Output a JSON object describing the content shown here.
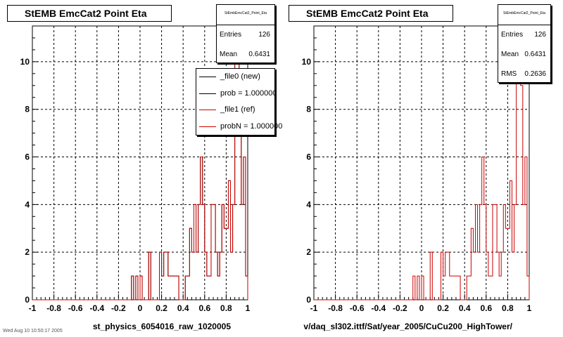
{
  "chart_data": [
    {
      "type": "histogram",
      "title": "StEMB EmcCat2 Point Eta",
      "xlabel": "st_physics_6054016_raw_1020005",
      "xlim": [
        -1,
        1
      ],
      "ylim": [
        0,
        11.5
      ],
      "xticks": [
        "-1",
        "-0.8",
        "-0.6",
        "-0.4",
        "-0.2",
        "0",
        "0.2",
        "0.4",
        "0.6",
        "0.8",
        "1"
      ],
      "yticks": [
        "0",
        "2",
        "4",
        "6",
        "8",
        "10"
      ],
      "grid": true,
      "bins": 100,
      "stats": {
        "header": "StEmbEmcCat2_Point_Eta",
        "rows": [
          {
            "label": "Entries",
            "value": "126"
          },
          {
            "label": "Mean",
            "value": "0.6431"
          }
        ]
      },
      "legend": {
        "placement": "top-right",
        "entries": [
          {
            "label": "_file0 (new)",
            "color": "#000000"
          },
          {
            "label": "prob = 1.000000",
            "color": "#000000"
          },
          {
            "label": "_file1 (ref)",
            "color": "#cc0000"
          },
          {
            "label": "probN = 1.000000",
            "color": "#cc0000"
          }
        ]
      },
      "series": [
        {
          "name": "_file0 (new)",
          "color": "#000000",
          "values": [
            0,
            0,
            0,
            0,
            0,
            0,
            0,
            0,
            0,
            0,
            0,
            0,
            0,
            0,
            0,
            0,
            0,
            0,
            0,
            0,
            0,
            0,
            0,
            0,
            0,
            0,
            0,
            0,
            0,
            0,
            0,
            0,
            0,
            0,
            0,
            0,
            0,
            0,
            0,
            0,
            0,
            0,
            0,
            0,
            0,
            0,
            1,
            0,
            1,
            0,
            1,
            0,
            0,
            0,
            2,
            0,
            0,
            0,
            0,
            2,
            1,
            2,
            2,
            1,
            1,
            1,
            1,
            1,
            0,
            0,
            0,
            1,
            1,
            3,
            2,
            4,
            2,
            4,
            6,
            4,
            2,
            1,
            1,
            4,
            4,
            2,
            1,
            2,
            4,
            3,
            3,
            5,
            2,
            4,
            10,
            11,
            9,
            4,
            6,
            1
          ]
        },
        {
          "name": "_file1 (ref)",
          "color": "#cc0000",
          "values": [
            0,
            0,
            0,
            0,
            0,
            0,
            0,
            0,
            0,
            0,
            0,
            0,
            0,
            0,
            0,
            0,
            0,
            0,
            0,
            0,
            0,
            0,
            0,
            0,
            0,
            0,
            0,
            0,
            0,
            0,
            0,
            0,
            0,
            0,
            0,
            0,
            0,
            0,
            0,
            0,
            0,
            0,
            0,
            0,
            0,
            0,
            1,
            0,
            1,
            0,
            1,
            0,
            0,
            0,
            2,
            0,
            0,
            0,
            0,
            2,
            1,
            2,
            2,
            1,
            1,
            1,
            1,
            1,
            0,
            0,
            0,
            1,
            1,
            3,
            2,
            4,
            2,
            4,
            6,
            4,
            2,
            1,
            1,
            4,
            4,
            2,
            1,
            2,
            4,
            3,
            3,
            5,
            2,
            4,
            10,
            11,
            9,
            4,
            6,
            1
          ]
        }
      ]
    },
    {
      "type": "histogram",
      "title": "StEMB EmcCat2 Point Eta",
      "xlabel": "v/daq_sl302.ittf/Sat/year_2005/CuCu200_HighTower/",
      "xlim": [
        -1,
        1
      ],
      "ylim": [
        0,
        11.5
      ],
      "xticks": [
        "-1",
        "-0.8",
        "-0.6",
        "-0.4",
        "-0.2",
        "0",
        "0.2",
        "0.4",
        "0.6",
        "0.8",
        "1"
      ],
      "yticks": [
        "0",
        "2",
        "4",
        "6",
        "8",
        "10"
      ],
      "grid": true,
      "bins": 100,
      "stats": {
        "header": "StEmbEmcCat2_Point_Eta",
        "rows": [
          {
            "label": "Entries",
            "value": "126"
          },
          {
            "label": "Mean",
            "value": "0.6431"
          },
          {
            "label": "RMS",
            "value": "0.2636"
          }
        ]
      },
      "series": [
        {
          "name": "_file1 (ref)",
          "color": "#cc0000",
          "values": [
            0,
            0,
            0,
            0,
            0,
            0,
            0,
            0,
            0,
            0,
            0,
            0,
            0,
            0,
            0,
            0,
            0,
            0,
            0,
            0,
            0,
            0,
            0,
            0,
            0,
            0,
            0,
            0,
            0,
            0,
            0,
            0,
            0,
            0,
            0,
            0,
            0,
            0,
            0,
            0,
            0,
            0,
            0,
            0,
            0,
            0,
            1,
            0,
            1,
            0,
            1,
            0,
            0,
            0,
            2,
            0,
            0,
            0,
            0,
            2,
            1,
            2,
            2,
            1,
            1,
            1,
            1,
            1,
            0,
            0,
            0,
            1,
            1,
            3,
            2,
            4,
            2,
            4,
            6,
            4,
            2,
            1,
            1,
            4,
            4,
            2,
            1,
            2,
            4,
            3,
            3,
            5,
            2,
            4,
            10,
            11,
            9,
            4,
            6,
            1
          ]
        }
      ]
    }
  ],
  "footer": "Wed Aug 10 10:50:17 2005"
}
